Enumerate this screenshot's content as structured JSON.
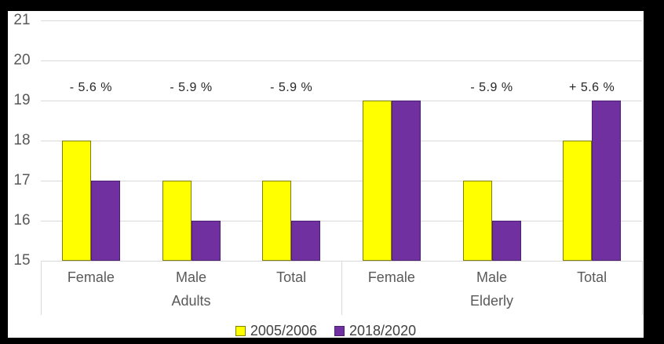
{
  "palette": {
    "background": "#000000",
    "chart_background": "#FFFFFF",
    "gridline": "#D9D9D9",
    "tick_text": "#595959",
    "category_text": "#595959",
    "annotation_text": "#262626",
    "legend_text": "#404040"
  },
  "chart_data": {
    "type": "bar",
    "title": "",
    "group_labels": [
      "Adults",
      "Elderly"
    ],
    "categories": [
      "Female",
      "Male",
      "Total",
      "Female",
      "Male",
      "Total"
    ],
    "series": [
      {
        "name": "2005/2006",
        "color": "#FFFF00",
        "border_color": "#7F7F00",
        "values": [
          18,
          17,
          17,
          19,
          17,
          18
        ]
      },
      {
        "name": "2018/2020",
        "color": "#7030A0",
        "border_color": "#4C2175",
        "values": [
          17,
          16,
          16,
          19,
          16,
          19
        ]
      }
    ],
    "annotations": [
      "- 5.6 %",
      "- 5.9 %",
      "- 5.9 %",
      "",
      "- 5.9 %",
      "+ 5.6 %"
    ],
    "ylim": [
      15,
      21
    ],
    "yticks": [
      21,
      20,
      19,
      18,
      17,
      16,
      15
    ],
    "grid": true,
    "legend_position": "bottom",
    "xlabel": "",
    "ylabel": ""
  }
}
